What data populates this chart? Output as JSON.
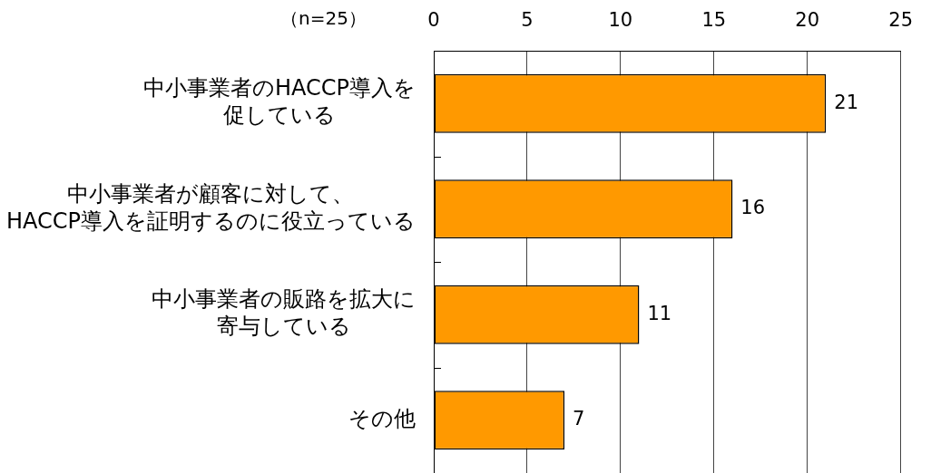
{
  "chart_data": {
    "type": "bar",
    "orientation": "horizontal",
    "categories": [
      "中小事業者のHACCP導入を促している",
      "中小事業者が顧客に対して、HACCP導入を証明するのに役立っている",
      "中小事業者の販路を拡大に寄与している",
      "その他"
    ],
    "values": [
      21,
      16,
      11,
      7
    ],
    "color": "#ff9900",
    "xlim": [
      0,
      25
    ],
    "xticks": [
      0,
      5,
      10,
      15,
      20,
      25
    ],
    "grid": "x",
    "data_labels": true,
    "annotations": [
      "（n=25）"
    ]
  }
}
